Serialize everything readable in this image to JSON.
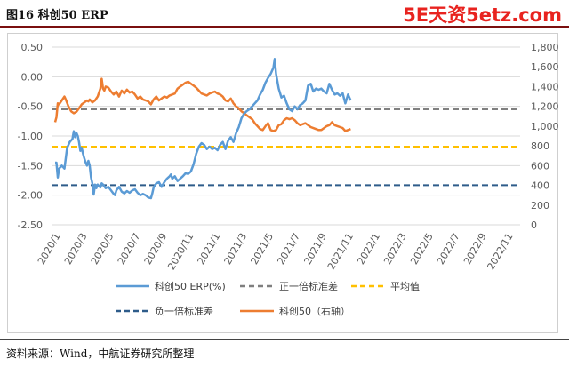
{
  "header": {
    "title": "图16  科创50 ERP",
    "watermark": "5E天资5etz.com"
  },
  "source": "资料来源：Wind，中航证券研究所整理",
  "colors": {
    "erp": "#5b9bd5",
    "index": "#ed7d31",
    "plus_sd": "#7f7f7f",
    "mean": "#ffc000",
    "minus_sd": "#2e5c8a"
  },
  "chart_data": {
    "type": "line",
    "x_ticks": [
      "2020/1",
      "2020/3",
      "2020/5",
      "2020/7",
      "2020/9",
      "2020/11",
      "2021/1",
      "2021/3",
      "2021/5",
      "2021/7",
      "2021/9",
      "2021/11",
      "2022/1",
      "2022/3",
      "2022/5",
      "2022/7",
      "2022/9",
      "2022/11"
    ],
    "y_left": {
      "range": [
        -2.5,
        0.5
      ],
      "ticks": [
        "0.50",
        "0.00",
        "-0.50",
        "-1.00",
        "-1.50",
        "-2.00",
        "-2.50"
      ]
    },
    "y_right": {
      "range": [
        0,
        1800
      ],
      "ticks": [
        "1,800",
        "1,600",
        "1,400",
        "1,200",
        "1,000",
        "800",
        "600",
        "400",
        "200",
        "0"
      ]
    },
    "grid": "horizontal",
    "legend_position": "bottom",
    "legend": {
      "erp": "科创50 ERP(%)",
      "plus_sd": "正一倍标准差",
      "mean": "平均值",
      "minus_sd": "负一倍标准差",
      "index": "科创50（右轴）"
    },
    "reference_lines": {
      "plus_sd": -0.55,
      "mean": -1.18,
      "minus_sd": -1.83
    },
    "series": [
      {
        "name": "科创50 ERP(%)",
        "axis": "left",
        "points": [
          [
            0.0,
            -1.45
          ],
          [
            0.1,
            -1.45
          ],
          [
            0.2,
            -1.7
          ],
          [
            0.3,
            -1.55
          ],
          [
            0.5,
            -1.5
          ],
          [
            0.7,
            -1.55
          ],
          [
            0.9,
            -1.2
          ],
          [
            1.1,
            -1.1
          ],
          [
            1.3,
            -1.05
          ],
          [
            1.4,
            -0.92
          ],
          [
            1.5,
            -1.02
          ],
          [
            1.6,
            -0.95
          ],
          [
            1.7,
            -1.0
          ],
          [
            1.8,
            -1.1
          ],
          [
            1.9,
            -1.25
          ],
          [
            2.0,
            -1.2
          ],
          [
            2.1,
            -1.3
          ],
          [
            2.2,
            -1.38
          ],
          [
            2.3,
            -1.45
          ],
          [
            2.4,
            -1.5
          ],
          [
            2.5,
            -1.42
          ],
          [
            2.6,
            -1.5
          ],
          [
            2.7,
            -1.7
          ],
          [
            2.8,
            -1.8
          ],
          [
            2.9,
            -1.99
          ],
          [
            3.0,
            -1.82
          ],
          [
            3.1,
            -1.88
          ],
          [
            3.2,
            -1.82
          ],
          [
            3.4,
            -1.87
          ],
          [
            3.5,
            -1.8
          ],
          [
            3.6,
            -1.82
          ],
          [
            3.8,
            -1.88
          ],
          [
            4.0,
            -1.86
          ],
          [
            4.2,
            -1.92
          ],
          [
            4.4,
            -1.98
          ],
          [
            4.5,
            -2.0
          ],
          [
            4.6,
            -1.92
          ],
          [
            4.8,
            -1.86
          ],
          [
            5.0,
            -1.94
          ],
          [
            5.2,
            -1.97
          ],
          [
            5.4,
            -1.93
          ],
          [
            5.6,
            -1.96
          ],
          [
            5.8,
            -1.92
          ],
          [
            6.0,
            -1.9
          ],
          [
            6.2,
            -1.96
          ],
          [
            6.4,
            -2.0
          ],
          [
            6.6,
            -1.98
          ],
          [
            6.8,
            -2.0
          ],
          [
            7.0,
            -2.04
          ],
          [
            7.2,
            -2.05
          ],
          [
            7.3,
            -1.97
          ],
          [
            7.4,
            -1.87
          ],
          [
            7.6,
            -1.8
          ],
          [
            7.8,
            -1.78
          ],
          [
            8.0,
            -1.86
          ],
          [
            8.2,
            -1.78
          ],
          [
            8.4,
            -1.72
          ],
          [
            8.6,
            -1.68
          ],
          [
            8.7,
            -1.65
          ],
          [
            8.8,
            -1.72
          ],
          [
            9.0,
            -1.68
          ],
          [
            9.2,
            -1.76
          ],
          [
            9.4,
            -1.72
          ],
          [
            9.6,
            -1.68
          ],
          [
            9.8,
            -1.63
          ],
          [
            10.0,
            -1.64
          ],
          [
            10.2,
            -1.6
          ],
          [
            10.4,
            -1.48
          ],
          [
            10.6,
            -1.3
          ],
          [
            10.8,
            -1.18
          ],
          [
            11.0,
            -1.12
          ],
          [
            11.2,
            -1.15
          ],
          [
            11.4,
            -1.22
          ],
          [
            11.6,
            -1.18
          ],
          [
            11.8,
            -1.22
          ],
          [
            12.0,
            -1.2
          ],
          [
            12.2,
            -1.24
          ],
          [
            12.4,
            -1.15
          ],
          [
            12.6,
            -1.1
          ],
          [
            12.8,
            -1.22
          ],
          [
            13.0,
            -1.08
          ],
          [
            13.2,
            -1.02
          ],
          [
            13.4,
            -1.1
          ],
          [
            13.6,
            -0.95
          ],
          [
            13.8,
            -0.85
          ],
          [
            14.0,
            -0.7
          ],
          [
            14.2,
            -0.62
          ],
          [
            14.4,
            -0.58
          ],
          [
            14.6,
            -0.55
          ],
          [
            14.8,
            -0.5
          ],
          [
            15.0,
            -0.45
          ],
          [
            15.2,
            -0.4
          ],
          [
            15.4,
            -0.3
          ],
          [
            15.6,
            -0.22
          ],
          [
            15.8,
            -0.1
          ],
          [
            16.0,
            -0.02
          ],
          [
            16.2,
            0.05
          ],
          [
            16.4,
            0.15
          ],
          [
            16.5,
            0.3
          ],
          [
            16.6,
            0.05
          ],
          [
            16.8,
            -0.2
          ],
          [
            17.0,
            -0.35
          ],
          [
            17.2,
            -0.32
          ],
          [
            17.4,
            -0.45
          ],
          [
            17.6,
            -0.55
          ],
          [
            17.8,
            -0.58
          ],
          [
            18.0,
            -0.5
          ],
          [
            18.2,
            -0.55
          ],
          [
            18.4,
            -0.48
          ],
          [
            18.6,
            -0.45
          ],
          [
            18.8,
            -0.4
          ],
          [
            19.0,
            -0.15
          ],
          [
            19.2,
            -0.12
          ],
          [
            19.4,
            -0.25
          ],
          [
            19.6,
            -0.2
          ],
          [
            19.8,
            -0.22
          ],
          [
            20.0,
            -0.2
          ],
          [
            20.2,
            -0.25
          ],
          [
            20.4,
            -0.28
          ],
          [
            20.6,
            -0.12
          ],
          [
            20.8,
            -0.22
          ],
          [
            21.0,
            -0.3
          ],
          [
            21.2,
            -0.28
          ],
          [
            21.4,
            -0.32
          ],
          [
            21.6,
            -0.28
          ],
          [
            21.8,
            -0.45
          ],
          [
            22.0,
            -0.3
          ],
          [
            22.2,
            -0.4
          ]
        ]
      },
      {
        "name": "科创50（右轴）",
        "axis": "right",
        "points": [
          [
            0.0,
            1040
          ],
          [
            0.1,
            1090
          ],
          [
            0.2,
            1230
          ],
          [
            0.3,
            1220
          ],
          [
            0.5,
            1260
          ],
          [
            0.7,
            1300
          ],
          [
            0.8,
            1270
          ],
          [
            1.0,
            1200
          ],
          [
            1.2,
            1150
          ],
          [
            1.4,
            1130
          ],
          [
            1.6,
            1145
          ],
          [
            1.8,
            1180
          ],
          [
            2.0,
            1220
          ],
          [
            2.2,
            1240
          ],
          [
            2.4,
            1260
          ],
          [
            2.5,
            1250
          ],
          [
            2.6,
            1270
          ],
          [
            2.8,
            1240
          ],
          [
            3.0,
            1260
          ],
          [
            3.2,
            1300
          ],
          [
            3.4,
            1380
          ],
          [
            3.5,
            1480
          ],
          [
            3.6,
            1380
          ],
          [
            3.7,
            1360
          ],
          [
            3.8,
            1400
          ],
          [
            4.0,
            1390
          ],
          [
            4.2,
            1350
          ],
          [
            4.4,
            1320
          ],
          [
            4.6,
            1350
          ],
          [
            4.8,
            1300
          ],
          [
            5.0,
            1360
          ],
          [
            5.2,
            1330
          ],
          [
            5.4,
            1370
          ],
          [
            5.6,
            1340
          ],
          [
            5.8,
            1350
          ],
          [
            6.0,
            1320
          ],
          [
            6.2,
            1280
          ],
          [
            6.4,
            1300
          ],
          [
            6.6,
            1270
          ],
          [
            6.8,
            1260
          ],
          [
            7.0,
            1250
          ],
          [
            7.2,
            1220
          ],
          [
            7.4,
            1270
          ],
          [
            7.6,
            1300
          ],
          [
            7.8,
            1260
          ],
          [
            8.0,
            1280
          ],
          [
            8.2,
            1300
          ],
          [
            8.4,
            1290
          ],
          [
            8.6,
            1310
          ],
          [
            8.8,
            1320
          ],
          [
            9.0,
            1330
          ],
          [
            9.2,
            1380
          ],
          [
            9.4,
            1400
          ],
          [
            9.6,
            1420
          ],
          [
            9.8,
            1440
          ],
          [
            10.0,
            1450
          ],
          [
            10.2,
            1430
          ],
          [
            10.4,
            1410
          ],
          [
            10.6,
            1390
          ],
          [
            10.8,
            1360
          ],
          [
            11.0,
            1330
          ],
          [
            11.2,
            1320
          ],
          [
            11.4,
            1310
          ],
          [
            11.6,
            1330
          ],
          [
            11.8,
            1340
          ],
          [
            12.0,
            1350
          ],
          [
            12.2,
            1330
          ],
          [
            12.4,
            1320
          ],
          [
            12.6,
            1300
          ],
          [
            12.8,
            1260
          ],
          [
            13.0,
            1250
          ],
          [
            13.2,
            1280
          ],
          [
            13.4,
            1230
          ],
          [
            13.6,
            1200
          ],
          [
            13.8,
            1180
          ],
          [
            14.0,
            1150
          ],
          [
            14.2,
            1130
          ],
          [
            14.4,
            1110
          ],
          [
            14.6,
            1090
          ],
          [
            14.8,
            1070
          ],
          [
            15.0,
            1030
          ],
          [
            15.2,
            1000
          ],
          [
            15.4,
            970
          ],
          [
            15.6,
            960
          ],
          [
            15.8,
            1000
          ],
          [
            16.0,
            1030
          ],
          [
            16.2,
            960
          ],
          [
            16.4,
            950
          ],
          [
            16.6,
            960
          ],
          [
            16.8,
            1010
          ],
          [
            17.0,
            1020
          ],
          [
            17.2,
            1060
          ],
          [
            17.4,
            1080
          ],
          [
            17.6,
            1070
          ],
          [
            17.8,
            1080
          ],
          [
            18.0,
            1060
          ],
          [
            18.2,
            1030
          ],
          [
            18.4,
            1010
          ],
          [
            18.6,
            1020
          ],
          [
            18.8,
            1030
          ],
          [
            19.0,
            1010
          ],
          [
            19.2,
            990
          ],
          [
            19.4,
            980
          ],
          [
            19.6,
            970
          ],
          [
            19.8,
            960
          ],
          [
            20.0,
            960
          ],
          [
            20.2,
            980
          ],
          [
            20.4,
            1000
          ],
          [
            20.6,
            1010
          ],
          [
            20.8,
            1040
          ],
          [
            21.0,
            1010
          ],
          [
            21.2,
            1000
          ],
          [
            21.4,
            990
          ],
          [
            21.6,
            980
          ],
          [
            21.8,
            950
          ],
          [
            22.0,
            960
          ],
          [
            22.2,
            970
          ]
        ]
      }
    ]
  }
}
